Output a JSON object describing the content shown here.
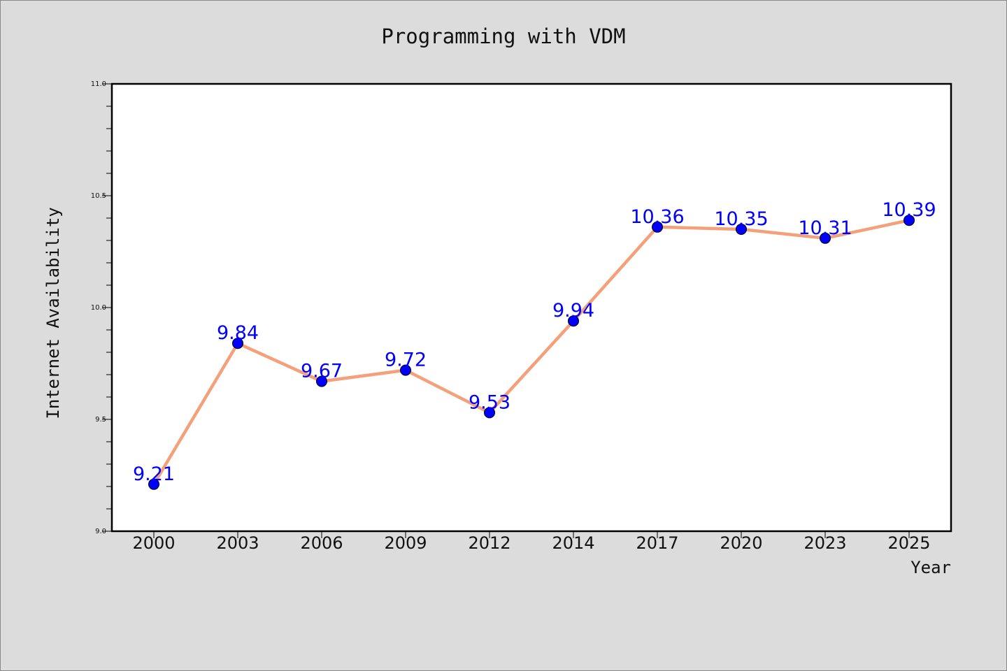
{
  "chart_data": {
    "type": "line",
    "title": "Programming with VDM",
    "xlabel": "Year",
    "ylabel": "Internet Availability",
    "categories": [
      "2000",
      "2003",
      "2006",
      "2009",
      "2012",
      "2014",
      "2017",
      "2020",
      "2023",
      "2025"
    ],
    "series": [
      {
        "values": [
          9.21,
          9.84,
          9.67,
          9.72,
          9.53,
          9.94,
          10.36,
          10.35,
          10.31,
          10.39
        ],
        "labels": [
          "9.21",
          "9.84",
          "9.67",
          "9.72",
          "9.53",
          "9.94",
          "10.36",
          "10.35",
          "10.31",
          "10.39"
        ],
        "line_color": "#f4a07a",
        "marker_color": "#0000ff"
      }
    ],
    "ylim": [
      9.0,
      11.0
    ],
    "y_ticks": [
      "9.0",
      "9.5",
      "10.0",
      "10.5",
      "11.0"
    ],
    "grid": false,
    "legend": "none",
    "plot_background": "#ffffff",
    "figure_background": "#dcdcdc"
  }
}
